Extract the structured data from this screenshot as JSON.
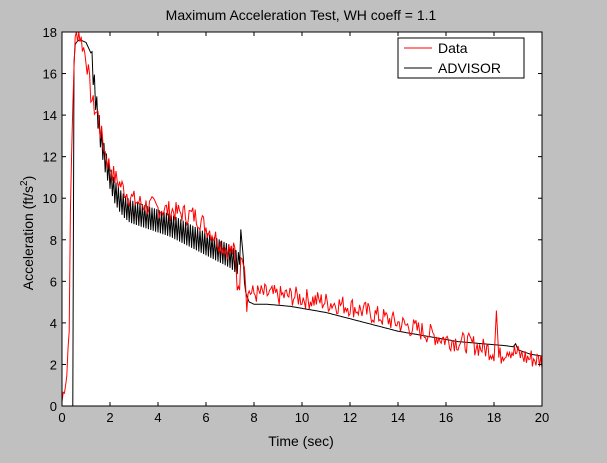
{
  "chart_data": {
    "type": "line",
    "title": "Maximum Acceleration Test, WH coeff = 1.1",
    "xlabel": "Time (sec)",
    "ylabel_main": "Acceleration (ft/s",
    "ylabel_sup": "2",
    "ylabel_close": ")",
    "xlim": [
      0,
      20
    ],
    "ylim": [
      0,
      18
    ],
    "xticks": [
      0,
      2,
      4,
      6,
      8,
      10,
      12,
      14,
      16,
      18,
      20
    ],
    "yticks": [
      0,
      2,
      4,
      6,
      8,
      10,
      12,
      14,
      16,
      18
    ],
    "grid": false,
    "legend_position": "top-right",
    "series": [
      {
        "name": "Data",
        "color": "#ff0000",
        "x": [
          0,
          0.1,
          0.2,
          0.3,
          0.35,
          0.4,
          0.45,
          0.5,
          0.55,
          0.6,
          0.7,
          0.8,
          0.9,
          1.0,
          1.1,
          1.2,
          1.3,
          1.4,
          1.5,
          1.6,
          1.7,
          1.8,
          1.9,
          2.0,
          2.2,
          2.4,
          2.6,
          2.8,
          3.0,
          3.2,
          3.4,
          3.6,
          3.8,
          4.0,
          4.2,
          4.4,
          4.6,
          4.8,
          5.0,
          5.2,
          5.4,
          5.6,
          5.8,
          6.0,
          6.2,
          6.4,
          6.6,
          6.8,
          7.0,
          7.2,
          7.3,
          7.4,
          7.5,
          7.6,
          7.7,
          7.8,
          7.9,
          8.0,
          8.5,
          9.0,
          9.5,
          10.0,
          10.5,
          11.0,
          11.5,
          12.0,
          12.5,
          13.0,
          13.5,
          14.0,
          14.5,
          15.0,
          15.5,
          16.0,
          16.5,
          17.0,
          17.5,
          17.8,
          18.0,
          18.1,
          18.2,
          18.4,
          18.6,
          18.8,
          19.0,
          19.2,
          19.4,
          19.6,
          19.8,
          20.0
        ],
        "y": [
          0.2,
          1.0,
          1.5,
          4.0,
          9.0,
          12.0,
          14.5,
          16.5,
          17.5,
          17.9,
          18.0,
          17.6,
          17.2,
          16.8,
          16.0,
          15.0,
          14.5,
          14.2,
          14.0,
          13.2,
          12.8,
          12.2,
          11.8,
          11.5,
          11.0,
          10.7,
          10.4,
          10.1,
          9.9,
          9.8,
          9.7,
          9.6,
          9.6,
          9.5,
          9.5,
          9.4,
          9.4,
          9.3,
          9.3,
          9.2,
          9.2,
          9.1,
          8.9,
          8.6,
          8.4,
          8.1,
          7.8,
          7.6,
          7.5,
          7.4,
          5.8,
          6.0,
          7.5,
          7.0,
          5.0,
          5.6,
          5.4,
          5.4,
          5.4,
          5.3,
          5.3,
          5.2,
          5.1,
          5.0,
          4.9,
          4.8,
          4.6,
          4.4,
          4.2,
          4.0,
          3.8,
          3.6,
          3.4,
          3.2,
          3.1,
          3.0,
          2.8,
          2.7,
          2.6,
          4.6,
          2.3,
          2.6,
          2.8,
          2.6,
          2.5,
          2.4,
          2.3,
          2.3,
          2.2,
          2.2
        ]
      },
      {
        "name": "ADVISOR",
        "color": "#000000",
        "x": [
          0,
          0.3,
          0.45,
          0.5,
          0.55,
          0.6,
          0.7,
          0.8,
          1.0,
          1.2,
          1.3,
          1.4,
          1.6,
          1.8,
          2.0,
          2.2,
          2.4,
          2.6,
          2.8,
          3.0,
          3.5,
          4.0,
          4.5,
          5.0,
          5.5,
          6.0,
          6.5,
          7.0,
          7.2,
          7.4,
          7.45,
          7.55,
          7.6,
          7.65,
          7.7,
          7.8,
          8.0,
          8.5,
          9.0,
          9.5,
          10.0,
          10.5,
          11.0,
          11.5,
          12.0,
          12.5,
          13.0,
          13.5,
          14.0,
          14.5,
          15.0,
          15.5,
          16.0,
          16.5,
          17.0,
          17.5,
          18.0,
          18.5,
          18.8,
          18.9,
          19.0,
          19.5,
          20.0
        ],
        "y": [
          0.0,
          0.0,
          0.0,
          16.5,
          17.4,
          17.5,
          17.6,
          17.6,
          17.5,
          17.0,
          16.0,
          14.8,
          13.0,
          11.8,
          11.0,
          10.3,
          9.9,
          9.6,
          9.4,
          9.3,
          9.1,
          8.9,
          8.7,
          8.4,
          8.1,
          7.8,
          7.5,
          7.2,
          7.0,
          6.8,
          8.5,
          7.2,
          6.0,
          5.5,
          5.3,
          5.0,
          4.9,
          4.9,
          4.85,
          4.8,
          4.7,
          4.6,
          4.5,
          4.35,
          4.2,
          4.05,
          3.9,
          3.75,
          3.6,
          3.5,
          3.4,
          3.3,
          3.2,
          3.1,
          3.05,
          3.0,
          2.95,
          2.9,
          2.85,
          3.0,
          2.7,
          2.5,
          2.4
        ]
      }
    ]
  }
}
